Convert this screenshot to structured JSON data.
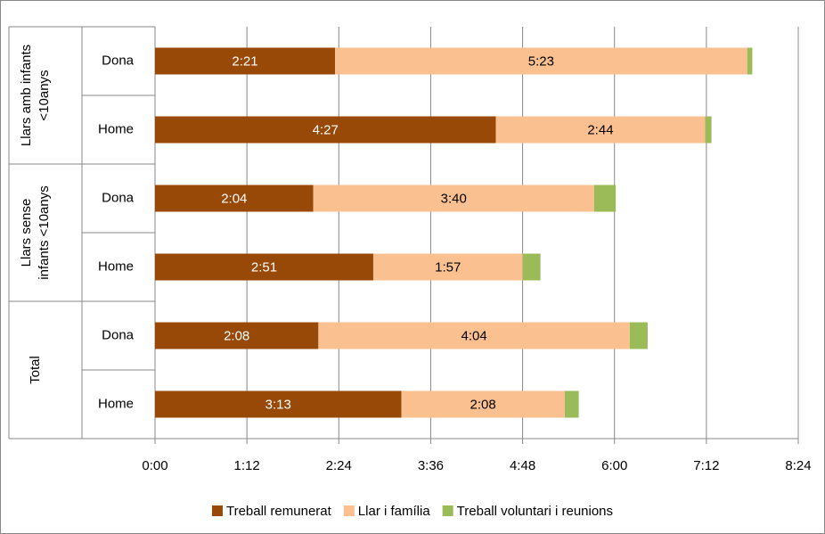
{
  "chart_data": {
    "type": "bar",
    "orientation": "horizontal",
    "stacked": true,
    "categories": [
      "Dona",
      "Home",
      "Dona",
      "Home",
      "Dona",
      "Home"
    ],
    "groups": [
      {
        "lines": [
          "Llars amb infants",
          "<10anys"
        ],
        "size": 2
      },
      {
        "lines": [
          "Llars sense",
          "infants <10anys"
        ],
        "size": 2
      },
      {
        "lines": [
          "Total"
        ],
        "size": 2
      }
    ],
    "series": [
      {
        "name": "Treball remunerat",
        "color": "#984807",
        "values": [
          141,
          267,
          124,
          171,
          128,
          193
        ],
        "value_labels": [
          "2:21",
          "4:27",
          "2:04",
          "2:51",
          "2:08",
          "3:13"
        ]
      },
      {
        "name": "Llar i família",
        "color": "#fac090",
        "values": [
          323,
          164,
          220,
          117,
          244,
          128
        ],
        "value_labels": [
          "5:23",
          "2:44",
          "3:40",
          "1:57",
          "4:04",
          "2:08"
        ]
      },
      {
        "name": "Treball voluntari i reunions",
        "color": "#9bbb59",
        "values": [
          4,
          5,
          17,
          14,
          14,
          11
        ]
      }
    ],
    "xlim": [
      0,
      504
    ],
    "xticks": [
      {
        "value": 0,
        "label": "0:00"
      },
      {
        "value": 72,
        "label": "1:12"
      },
      {
        "value": 144,
        "label": "2:24"
      },
      {
        "value": 216,
        "label": "3:36"
      },
      {
        "value": 288,
        "label": "4:48"
      },
      {
        "value": 360,
        "label": "6:00"
      },
      {
        "value": 432,
        "label": "7:12"
      },
      {
        "value": 504,
        "label": "8:24"
      }
    ],
    "grid": true,
    "legend": "bottom"
  }
}
